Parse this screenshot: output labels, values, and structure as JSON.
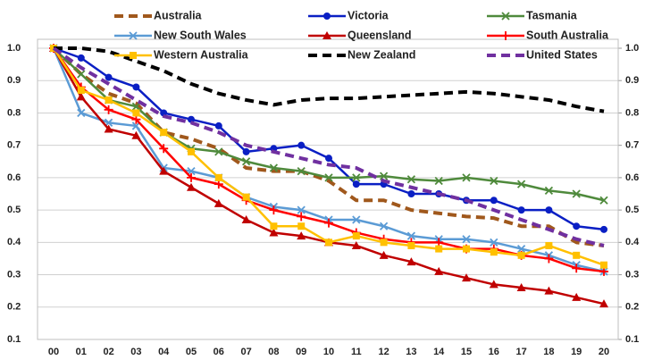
{
  "chart_data": {
    "type": "line",
    "categories": [
      "00",
      "01",
      "02",
      "03",
      "04",
      "05",
      "06",
      "07",
      "08",
      "09",
      "10",
      "11",
      "12",
      "13",
      "14",
      "15",
      "16",
      "17",
      "18",
      "19",
      "20"
    ],
    "ylim": [
      0.1,
      1.0
    ],
    "yticks": [
      0.1,
      0.2,
      0.3,
      0.4,
      0.5,
      0.6,
      0.7,
      0.8,
      0.9,
      {
        "value": 1.0,
        "label": "1.0"
      }
    ],
    "y2lim": [
      0.1,
      1.0
    ],
    "y2ticks": [
      0.1,
      0.2,
      0.3,
      0.4,
      0.5,
      0.6,
      0.7,
      0.8,
      0.9,
      {
        "value": 1.0,
        "label": "1.0"
      }
    ],
    "grid": true,
    "series": [
      {
        "name": "Australia",
        "color": "#a0581c",
        "dashed": true,
        "marker": "none",
        "values": [
          1.0,
          0.92,
          0.86,
          0.83,
          0.74,
          0.72,
          0.69,
          0.63,
          0.62,
          0.62,
          0.59,
          0.53,
          0.53,
          0.5,
          0.49,
          0.48,
          0.475,
          0.45,
          0.45,
          0.4,
          0.39
        ]
      },
      {
        "name": "Victoria",
        "color": "#0a1fc4",
        "dashed": false,
        "marker": "circle",
        "values": [
          1.0,
          0.97,
          0.91,
          0.88,
          0.8,
          0.78,
          0.76,
          0.68,
          0.69,
          0.7,
          0.66,
          0.58,
          0.58,
          0.55,
          0.55,
          0.53,
          0.53,
          0.5,
          0.5,
          0.45,
          0.44
        ]
      },
      {
        "name": "Tasmania",
        "color": "#4f8a3c",
        "dashed": false,
        "marker": "x",
        "values": [
          1.0,
          0.92,
          0.84,
          0.82,
          0.74,
          0.69,
          0.68,
          0.65,
          0.63,
          0.62,
          0.6,
          0.6,
          0.605,
          0.595,
          0.59,
          0.6,
          0.59,
          0.58,
          0.56,
          0.55,
          0.53
        ]
      },
      {
        "name": "New South Wales",
        "color": "#5b9bd5",
        "dashed": false,
        "marker": "x",
        "values": [
          1.0,
          0.8,
          0.77,
          0.76,
          0.63,
          0.62,
          0.6,
          0.54,
          0.51,
          0.5,
          0.47,
          0.47,
          0.45,
          0.42,
          0.41,
          0.41,
          0.4,
          0.38,
          0.36,
          0.33,
          0.31
        ]
      },
      {
        "name": "Queensland",
        "color": "#c00000",
        "dashed": false,
        "marker": "triangle",
        "values": [
          1.0,
          0.85,
          0.75,
          0.73,
          0.62,
          0.57,
          0.52,
          0.47,
          0.43,
          0.42,
          0.4,
          0.39,
          0.36,
          0.34,
          0.31,
          0.29,
          0.27,
          0.26,
          0.25,
          0.23,
          0.21
        ]
      },
      {
        "name": "South Australia",
        "color": "#ff0000",
        "dashed": false,
        "marker": "plus",
        "values": [
          1.0,
          0.88,
          0.81,
          0.78,
          0.69,
          0.6,
          0.58,
          0.53,
          0.5,
          0.48,
          0.46,
          0.43,
          0.41,
          0.4,
          0.4,
          0.38,
          0.38,
          0.36,
          0.35,
          0.32,
          0.31
        ]
      },
      {
        "name": "Western Australia",
        "color": "#ffc000",
        "dashed": false,
        "marker": "square",
        "values": [
          1.0,
          0.87,
          0.84,
          0.8,
          0.74,
          0.68,
          0.6,
          0.54,
          0.45,
          0.45,
          0.4,
          0.42,
          0.4,
          0.39,
          0.38,
          0.38,
          0.37,
          0.36,
          0.39,
          0.36,
          0.33
        ]
      },
      {
        "name": "New Zealand",
        "color": "#000000",
        "dashed": true,
        "marker": "none",
        "values": [
          1.0,
          1.0,
          0.99,
          0.96,
          0.93,
          0.89,
          0.86,
          0.84,
          0.825,
          0.84,
          0.845,
          0.845,
          0.85,
          0.855,
          0.86,
          0.865,
          0.86,
          0.85,
          0.84,
          0.82,
          0.805
        ]
      },
      {
        "name": "United States",
        "color": "#7030a0",
        "dashed": true,
        "marker": "none",
        "values": [
          1.0,
          0.94,
          0.89,
          0.84,
          0.79,
          0.77,
          0.74,
          0.7,
          0.68,
          0.66,
          0.64,
          0.63,
          0.59,
          0.57,
          0.55,
          0.53,
          0.5,
          0.47,
          0.44,
          0.41,
          0.39
        ]
      }
    ]
  }
}
